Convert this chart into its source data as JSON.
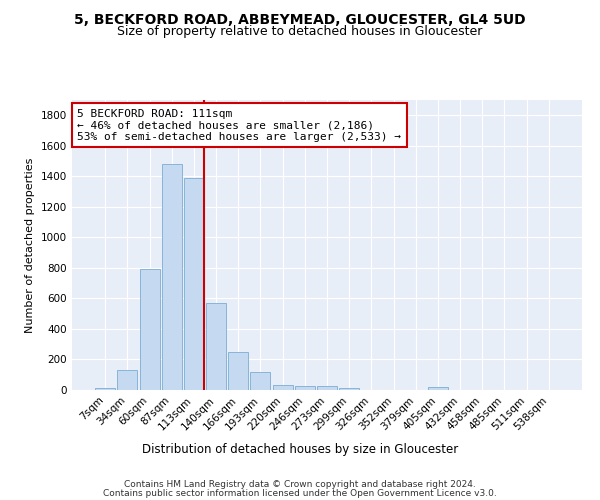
{
  "title": "5, BECKFORD ROAD, ABBEYMEAD, GLOUCESTER, GL4 5UD",
  "subtitle": "Size of property relative to detached houses in Gloucester",
  "xlabel": "Distribution of detached houses by size in Gloucester",
  "ylabel": "Number of detached properties",
  "bar_color": "#c5d9f0",
  "bar_edge_color": "#7aadd4",
  "background_color": "#ffffff",
  "plot_bg_color": "#e8eef8",
  "grid_color": "#ffffff",
  "categories": [
    "7sqm",
    "34sqm",
    "60sqm",
    "87sqm",
    "113sqm",
    "140sqm",
    "166sqm",
    "193sqm",
    "220sqm",
    "246sqm",
    "273sqm",
    "299sqm",
    "326sqm",
    "352sqm",
    "379sqm",
    "405sqm",
    "432sqm",
    "458sqm",
    "485sqm",
    "511sqm",
    "538sqm"
  ],
  "values": [
    12,
    130,
    795,
    1480,
    1390,
    570,
    250,
    115,
    35,
    28,
    28,
    10,
    0,
    0,
    0,
    20,
    0,
    0,
    0,
    0,
    0
  ],
  "ylim": [
    0,
    1900
  ],
  "yticks": [
    0,
    200,
    400,
    600,
    800,
    1000,
    1200,
    1400,
    1600,
    1800
  ],
  "vline_bin_index": 4,
  "vline_color": "#cc0000",
  "annotation_text": "5 BECKFORD ROAD: 111sqm\n← 46% of detached houses are smaller (2,186)\n53% of semi-detached houses are larger (2,533) →",
  "annotation_box_color": "#ffffff",
  "annotation_box_edge_color": "#cc0000",
  "footer_line1": "Contains HM Land Registry data © Crown copyright and database right 2024.",
  "footer_line2": "Contains public sector information licensed under the Open Government Licence v3.0.",
  "title_fontsize": 10,
  "subtitle_fontsize": 9,
  "xlabel_fontsize": 8.5,
  "ylabel_fontsize": 8,
  "tick_fontsize": 7.5,
  "annotation_fontsize": 8,
  "footer_fontsize": 6.5
}
